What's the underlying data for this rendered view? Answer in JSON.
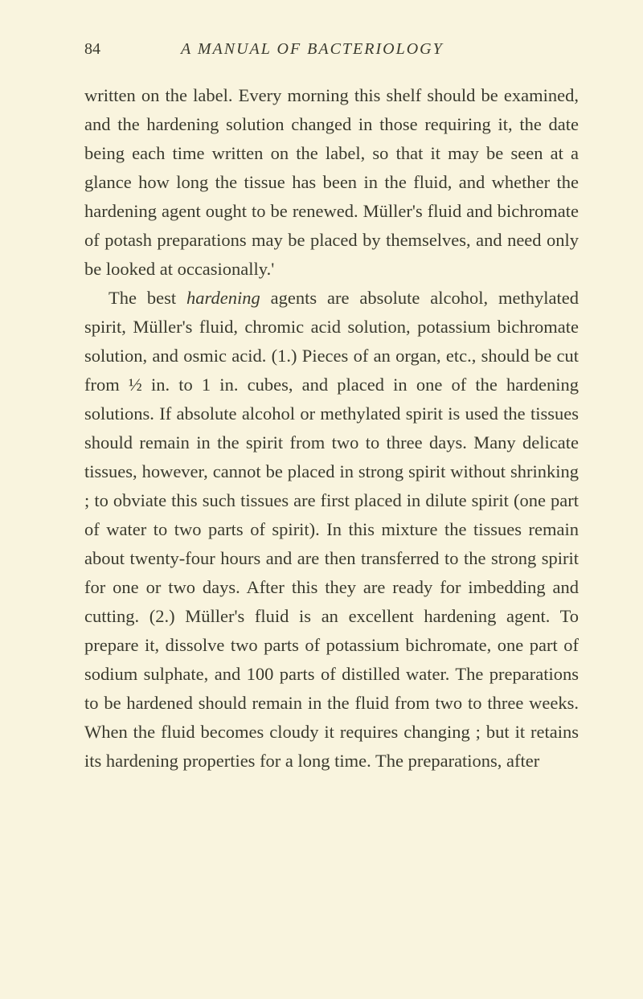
{
  "page": {
    "number": "84",
    "title": "A MANUAL OF BACTERIOLOGY"
  },
  "paragraphs": {
    "p1": "written on the label. Every morning this shelf should be examined, and the hardening solution changed in those requiring it, the date being each time written on the label, so that it may be seen at a glance how long the tissue has been in the fluid, and whether the hardening agent ought to be renewed. Müller's fluid and bichromate of potash preparations may be placed by themselves, and need only be looked at occasionally.'",
    "p2_prefix": "The best ",
    "p2_italic": "hardening",
    "p2_suffix": " agents are absolute alcohol, methylated spirit, Müller's fluid, chromic acid solution, potassium bichromate solution, and osmic acid. (1.) Pieces of an organ, etc., should be cut from ½ in. to 1 in. cubes, and placed in one of the hardening solutions. If absolute alcohol or methylated spirit is used the tissues should remain in the spirit from two to three days. Many delicate tissues, however, cannot be placed in strong spirit without shrinking ; to obviate this such tissues are first placed in dilute spirit (one part of water to two parts of spirit). In this mixture the tissues remain about twenty-four hours and are then transferred to the strong spirit for one or two days. After this they are ready for imbedding and cutting. (2.) Müller's fluid is an excellent hardening agent. To prepare it, dissolve two parts of potassium bichromate, one part of sodium sulphate, and 100 parts of distilled water. The preparations to be hardened should remain in the fluid from two to three weeks. When the fluid becomes cloudy it requires changing ; but it retains its hardening properties for a long time. The preparations, after"
  },
  "styling": {
    "background_color": "#f9f4de",
    "text_color": "#3a3a2e",
    "body_fontsize": 22.5,
    "header_fontsize": 20,
    "line_height": 1.6,
    "font_family": "Georgia, Times New Roman, serif"
  }
}
